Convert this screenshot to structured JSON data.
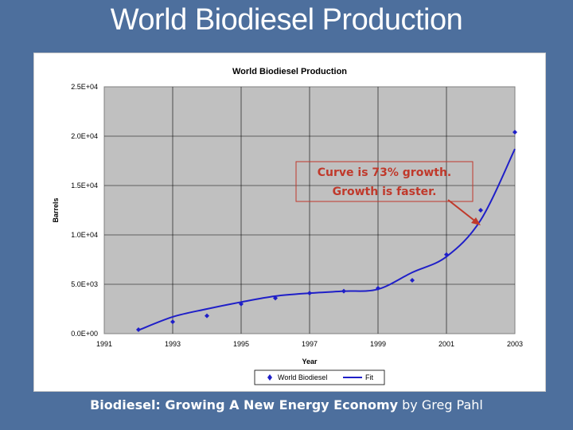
{
  "slide": {
    "title": "World Biodiesel Production",
    "footer_bold": "Biodiesel: Growing A New Energy Economy",
    "footer_plain": " by Greg Pahl"
  },
  "annotation": {
    "line1": "Curve is 73% growth.",
    "line2": "Growth is faster.",
    "color": "#c0392b"
  },
  "colors": {
    "background": "#4d6f9d",
    "plot_bg": "#c0c0c0",
    "series": "#1f1fc8"
  },
  "chart_data": {
    "type": "scatter",
    "title": "World Biodiesel Production",
    "xlabel": "Year",
    "ylabel": "Barrels",
    "xlim": [
      1991,
      2003
    ],
    "ylim": [
      0,
      25000
    ],
    "x_ticks": [
      "1991",
      "1993",
      "1995",
      "1997",
      "1999",
      "2001",
      "2003"
    ],
    "x_tick_values": [
      1991,
      1993,
      1995,
      1997,
      1999,
      2001,
      2003
    ],
    "y_ticks": [
      "0.0E+00",
      "5.0E+03",
      "1.0E+04",
      "1.5E+04",
      "2.0E+04",
      "2.5E+04"
    ],
    "y_tick_values": [
      0,
      5000,
      10000,
      15000,
      20000,
      25000
    ],
    "grid": true,
    "legend_position": "bottom",
    "series": [
      {
        "name": "World Biodiesel",
        "marker": "diamond",
        "x": [
          1992,
          1993,
          1994,
          1995,
          1996,
          1997,
          1998,
          1999,
          2000,
          2001,
          2002,
          2003
        ],
        "y": [
          400,
          1200,
          1800,
          3000,
          3600,
          4100,
          4300,
          4600,
          5400,
          8000,
          12500,
          20400
        ]
      },
      {
        "name": "Fit",
        "marker": "none",
        "x": [
          1992,
          1993,
          1994,
          1995,
          1996,
          1997,
          1998,
          1999,
          2000,
          2001,
          2002,
          2003
        ],
        "y": [
          350,
          1700,
          2500,
          3200,
          3800,
          4100,
          4300,
          4500,
          6200,
          7800,
          11500,
          18700
        ]
      }
    ]
  }
}
